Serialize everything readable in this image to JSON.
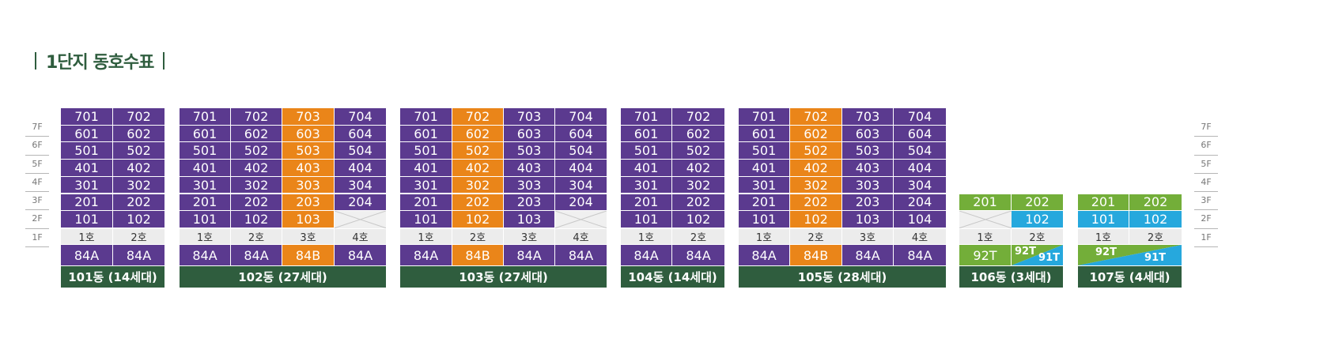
{
  "title": "1단지 동호수표",
  "floors": [
    "7F",
    "6F",
    "5F",
    "4F",
    "3F",
    "2F",
    "1F"
  ],
  "colors": {
    "purple": "#5b3a8f",
    "orange": "#ea8519",
    "green": "#73ae39",
    "blue": "#26a8dd",
    "dark_green": "#2f5d3e"
  },
  "buildings": [
    {
      "name": "101동 (14세대)",
      "cols": [
        "1호",
        "2호"
      ],
      "types": [
        "84A",
        "84A"
      ],
      "rows": [
        [
          "701",
          "702"
        ],
        [
          "601",
          "602"
        ],
        [
          "501",
          "502"
        ],
        [
          "401",
          "402"
        ],
        [
          "301",
          "302"
        ],
        [
          "201",
          "202"
        ],
        [
          "101",
          "102"
        ]
      ]
    },
    {
      "name": "102동 (27세대)",
      "cols": [
        "1호",
        "2호",
        "3호",
        "4호"
      ],
      "types": [
        "84A",
        "84A",
        "84B",
        "84A"
      ],
      "rows": [
        [
          "701",
          "702",
          "703",
          "704"
        ],
        [
          "601",
          "602",
          "603",
          "604"
        ],
        [
          "501",
          "502",
          "503",
          "504"
        ],
        [
          "401",
          "402",
          "403",
          "404"
        ],
        [
          "301",
          "302",
          "303",
          "304"
        ],
        [
          "201",
          "202",
          "203",
          "204"
        ],
        [
          "101",
          "102",
          "103",
          ""
        ]
      ]
    },
    {
      "name": "103동 (27세대)",
      "cols": [
        "1호",
        "2호",
        "3호",
        "4호"
      ],
      "types": [
        "84A",
        "84B",
        "84A",
        "84A"
      ],
      "rows": [
        [
          "701",
          "702",
          "703",
          "704"
        ],
        [
          "601",
          "602",
          "603",
          "604"
        ],
        [
          "501",
          "502",
          "503",
          "504"
        ],
        [
          "401",
          "402",
          "403",
          "404"
        ],
        [
          "301",
          "302",
          "303",
          "304"
        ],
        [
          "201",
          "202",
          "203",
          "204"
        ],
        [
          "101",
          "102",
          "103",
          ""
        ]
      ]
    },
    {
      "name": "104동 (14세대)",
      "cols": [
        "1호",
        "2호"
      ],
      "types": [
        "84A",
        "84A"
      ],
      "rows": [
        [
          "701",
          "702"
        ],
        [
          "601",
          "602"
        ],
        [
          "501",
          "502"
        ],
        [
          "401",
          "402"
        ],
        [
          "301",
          "302"
        ],
        [
          "201",
          "202"
        ],
        [
          "101",
          "102"
        ]
      ]
    },
    {
      "name": "105동 (28세대)",
      "cols": [
        "1호",
        "2호",
        "3호",
        "4호"
      ],
      "types": [
        "84A",
        "84B",
        "84A",
        "84A"
      ],
      "rows": [
        [
          "701",
          "702",
          "703",
          "704"
        ],
        [
          "601",
          "602",
          "603",
          "604"
        ],
        [
          "501",
          "502",
          "503",
          "504"
        ],
        [
          "401",
          "402",
          "403",
          "404"
        ],
        [
          "301",
          "302",
          "303",
          "304"
        ],
        [
          "201",
          "202",
          "203",
          "204"
        ],
        [
          "101",
          "102",
          "103",
          "104"
        ]
      ]
    },
    {
      "name": "106동 (3세대)",
      "cols": [
        "1호",
        "2호"
      ],
      "types": [
        "92T",
        "92T/91T"
      ],
      "rows": [
        [
          "201",
          "202"
        ],
        [
          "",
          "102"
        ]
      ]
    },
    {
      "name": "107동 (4세대)",
      "cols": [
        "1호",
        "2호"
      ],
      "types": [
        "92T/91T"
      ],
      "rows": [
        [
          "201",
          "202"
        ],
        [
          "101",
          "102"
        ]
      ]
    }
  ]
}
